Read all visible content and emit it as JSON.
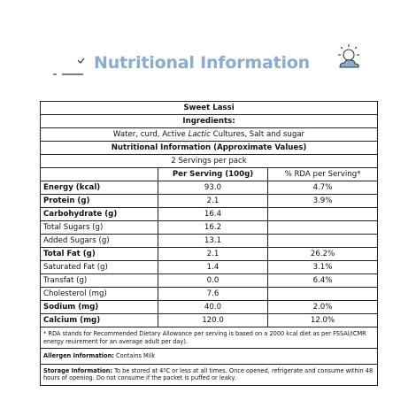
{
  "header": {
    "title": "Nutritional Information",
    "icons": {
      "left": "sparkle-dashes-icon",
      "right": "sun-cloud-icon"
    },
    "accent_color": "#8aaccd"
  },
  "table": {
    "product_name": "Sweet Lassi",
    "ingredients_heading": "Ingredients:",
    "ingredients_before": "Water, curd, Active ",
    "ingredients_italic": "Lactic",
    "ingredients_after": " Cultures, Salt and sugar",
    "info_heading": "Nutritional Information (Approximate Values)",
    "servings": "2 Servings per pack",
    "col_per_serving": "Per Serving (100g)",
    "col_rda": "% RDA per Serving*",
    "rows": [
      {
        "label": "Energy (kcal)",
        "value": "93.0",
        "rda": "4.7%",
        "bold": true
      },
      {
        "label": "Protein (g)",
        "value": "2.1",
        "rda": "3.9%",
        "bold": true
      },
      {
        "label": "Carbohydrate (g)",
        "value": "16.4",
        "rda": "",
        "bold": true
      },
      {
        "label": "Total Sugars (g)",
        "value": "16.2",
        "rda": "",
        "bold": false
      },
      {
        "label": "Added Sugars (g)",
        "value": "13.1",
        "rda": "",
        "bold": false
      },
      {
        "label": "Total Fat (g)",
        "value": "2.1",
        "rda": "26.2%",
        "bold": true
      },
      {
        "label": "Saturated Fat (g)",
        "value": "1.4",
        "rda": "3.1%",
        "bold": false
      },
      {
        "label": "Transfat (g)",
        "value": "0.0",
        "rda": "6.4%",
        "bold": false
      },
      {
        "label": "Cholesterol (mg)",
        "value": "7.6",
        "rda": "",
        "bold": false
      },
      {
        "label": "Sodium (mg)",
        "value": "40.0",
        "rda": "2.0%",
        "bold": true
      },
      {
        "label": "Calcium (mg)",
        "value": "120.0",
        "rda": "12.0%",
        "bold": true
      }
    ],
    "rda_note": "* RDA stands for Recommended Dietary Allowance per serving is based on a 2000 kcal diet as per FSSAI/ICMR energy reuirement for an average adult per day).",
    "allergen_label": "Allergen Information:",
    "allergen_text": " Contains Milk",
    "storage_label": "Storage Information:",
    "storage_text": " To be stored at 4ºC or less at all times. Once opened, refrigerate and consume within 48 hours of opening. Do not consume if the packet is puffed or leaky."
  }
}
